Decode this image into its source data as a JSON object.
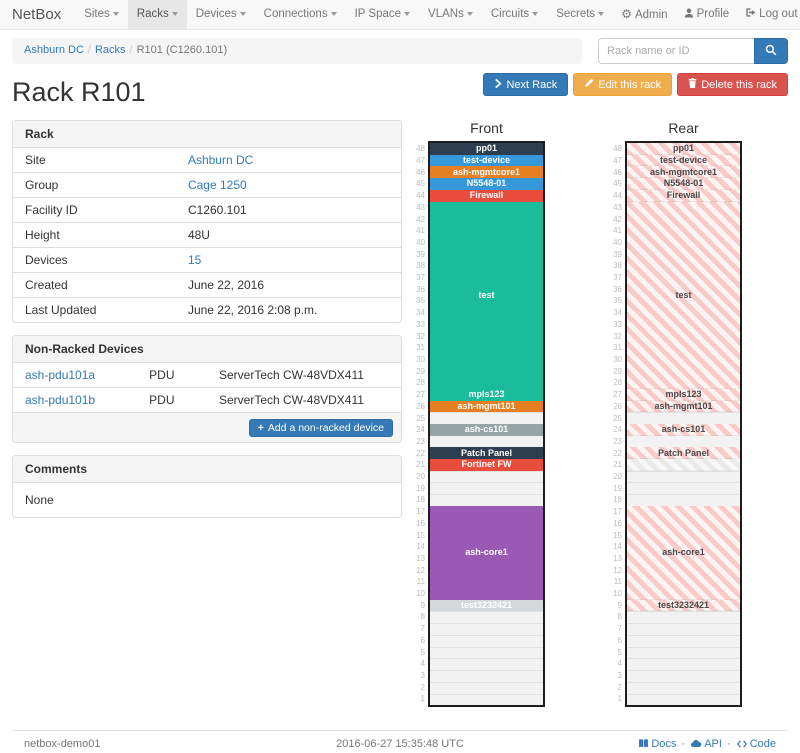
{
  "navbar": {
    "brand": "NetBox",
    "items": [
      {
        "label": "Sites",
        "active": false
      },
      {
        "label": "Racks",
        "active": true
      },
      {
        "label": "Devices",
        "active": false
      },
      {
        "label": "Connections",
        "active": false
      },
      {
        "label": "IP Space",
        "active": false
      },
      {
        "label": "VLANs",
        "active": false
      },
      {
        "label": "Circuits",
        "active": false
      },
      {
        "label": "Secrets",
        "active": false
      }
    ],
    "right_items": [
      {
        "label": "Admin",
        "icon": "gear-icon"
      },
      {
        "label": "Profile",
        "icon": "user-icon"
      },
      {
        "label": "Log out",
        "icon": "log-out-icon"
      }
    ]
  },
  "breadcrumb": {
    "items": [
      {
        "label": "Ashburn DC",
        "link": true
      },
      {
        "label": "Racks",
        "link": true
      },
      {
        "label": "R101 (C1260.101)",
        "link": false
      }
    ]
  },
  "search": {
    "placeholder": "Rack name or ID",
    "value": "",
    "icon": "search-icon"
  },
  "page_title": "Rack R101",
  "actions": {
    "next_label": "Next Rack",
    "edit_label": "Edit this rack",
    "delete_label": "Delete this rack"
  },
  "rack_panel": {
    "title": "Rack",
    "rows": [
      {
        "label": "Site",
        "value": "Ashburn DC",
        "link": true
      },
      {
        "label": "Group",
        "value": "Cage 1250",
        "link": true
      },
      {
        "label": "Facility ID",
        "value": "C1260.101",
        "link": false
      },
      {
        "label": "Height",
        "value": "48U",
        "link": false
      },
      {
        "label": "Devices",
        "value": "15",
        "link": true
      },
      {
        "label": "Created",
        "value": "June 22, 2016",
        "link": false
      },
      {
        "label": "Last Updated",
        "value": "June 22, 2016 2:08 p.m.",
        "link": false
      }
    ]
  },
  "non_racked": {
    "title": "Non-Racked Devices",
    "rows": [
      {
        "name": "ash-pdu101a",
        "role": "PDU",
        "model": "ServerTech CW-48VDX411"
      },
      {
        "name": "ash-pdu101b",
        "role": "PDU",
        "model": "ServerTech CW-48VDX411"
      }
    ],
    "add_button_label": "Add a non-racked device"
  },
  "comments": {
    "title": "Comments",
    "body": "None"
  },
  "elevations": {
    "front": {
      "title": "Front",
      "units_total": 48,
      "devices": [
        {
          "top_u": 48,
          "height": 1,
          "label": "pp01",
          "style": "solid",
          "color": "#2c3e50"
        },
        {
          "top_u": 47,
          "height": 1,
          "label": "test-device",
          "style": "solid",
          "color": "#3498db"
        },
        {
          "top_u": 46,
          "height": 1,
          "label": "ash-mgmtcore1",
          "style": "solid",
          "color": "#e67e22"
        },
        {
          "top_u": 45,
          "height": 1,
          "label": "N5548-01",
          "style": "solid",
          "color": "#3498db"
        },
        {
          "top_u": 44,
          "height": 1,
          "label": "Firewall",
          "style": "solid",
          "color": "#e74c3c"
        },
        {
          "top_u": 43,
          "height": 16,
          "label": "test",
          "style": "solid",
          "color": "#1abc9c"
        },
        {
          "top_u": 27,
          "height": 1,
          "label": "mpls123",
          "style": "solid",
          "color": "#1abc9c"
        },
        {
          "top_u": 26,
          "height": 1,
          "label": "ash-mgmt101",
          "style": "solid",
          "color": "#e67e22"
        },
        {
          "top_u": 24,
          "height": 1,
          "label": "ash-cs101",
          "style": "solid",
          "color": "#95a5a6"
        },
        {
          "top_u": 22,
          "height": 1,
          "label": "Patch Panel",
          "style": "solid",
          "color": "#2c3e50"
        },
        {
          "top_u": 21,
          "height": 1,
          "label": "Fortinet FW",
          "style": "solid",
          "color": "#e74c3c"
        },
        {
          "top_u": 17,
          "height": 8,
          "label": "ash-core1",
          "style": "solid",
          "color": "#9b59b6"
        },
        {
          "top_u": 9,
          "height": 1,
          "label": "test3232421",
          "style": "solid",
          "color": "#d5d8db"
        }
      ]
    },
    "rear": {
      "title": "Rear",
      "units_total": 48,
      "devices": [
        {
          "top_u": 48,
          "height": 1,
          "label": "pp01",
          "style": "striped-pink"
        },
        {
          "top_u": 47,
          "height": 1,
          "label": "test-device",
          "style": "striped-pink"
        },
        {
          "top_u": 46,
          "height": 1,
          "label": "ash-mgmtcore1",
          "style": "striped-pink"
        },
        {
          "top_u": 45,
          "height": 1,
          "label": "N5548-01",
          "style": "striped-pink"
        },
        {
          "top_u": 44,
          "height": 1,
          "label": "Firewall",
          "style": "striped-pink"
        },
        {
          "top_u": 43,
          "height": 16,
          "label": "test",
          "style": "striped-pink"
        },
        {
          "top_u": 27,
          "height": 1,
          "label": "mpls123",
          "style": "striped-pink"
        },
        {
          "top_u": 26,
          "height": 1,
          "label": "ash-mgmt101",
          "style": "striped-pink"
        },
        {
          "top_u": 24,
          "height": 1,
          "label": "ash-cs101",
          "style": "striped-pink"
        },
        {
          "top_u": 22,
          "height": 1,
          "label": "Patch Panel",
          "style": "striped-pink"
        },
        {
          "top_u": 21,
          "height": 1,
          "label": "",
          "style": "striped-gray"
        },
        {
          "top_u": 17,
          "height": 8,
          "label": "ash-core1",
          "style": "striped-pink"
        },
        {
          "top_u": 9,
          "height": 1,
          "label": "test3232421",
          "style": "striped-pink"
        }
      ]
    }
  },
  "footer": {
    "hostname": "netbox-demo01",
    "timestamp": "2016-06-27 15:35:48 UTC",
    "links": [
      {
        "label": "Docs",
        "icon": "book-icon"
      },
      {
        "label": "API",
        "icon": "cloud-icon"
      },
      {
        "label": "Code",
        "icon": "code-icon"
      }
    ]
  },
  "colors": {
    "link": "#337ab7",
    "btn_primary": "#337ab7",
    "btn_warning": "#f0ad4e",
    "btn_danger": "#d9534f",
    "rear_stripe": "#f8cbc8",
    "empty_unit": "#f2f2f2"
  }
}
